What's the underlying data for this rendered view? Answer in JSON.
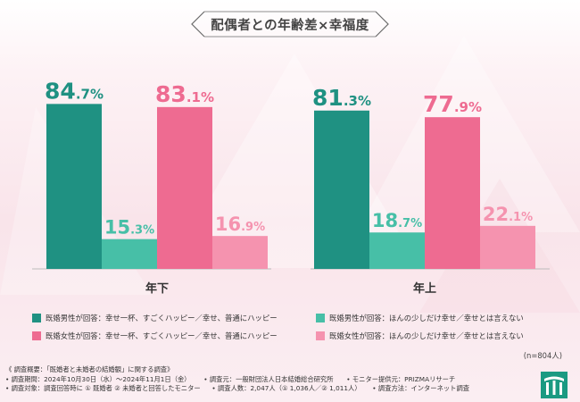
{
  "title": "配偶者との年齢差×幸福度",
  "colors": {
    "married_male_happy": "#1f9182",
    "married_male_not": "#47bfa7",
    "married_female_happy": "#ee6b91",
    "married_female_not": "#f593af",
    "logo": "#1a9a82"
  },
  "chart_data": {
    "type": "bar",
    "title": "配偶者との年齢差×幸福度",
    "categories": [
      "年下",
      "年上"
    ],
    "ylim": [
      0,
      100
    ],
    "value_format": "percent",
    "series": [
      {
        "name": "既婚男性が回答：幸せ一杯、すごくハッピー／幸せ、普通にハッピー",
        "values": [
          84.7,
          81.3
        ]
      },
      {
        "name": "既婚男性が回答：ほんの少しだけ幸せ／幸せとは言えない",
        "values": [
          15.3,
          18.7
        ]
      },
      {
        "name": "既婚女性が回答：幸せ一杯、すごくハッピー／幸せ、普通にハッピー",
        "values": [
          83.1,
          77.9
        ]
      },
      {
        "name": "既婚女性が回答：ほんの少しだけ幸せ／幸せとは言えない",
        "values": [
          16.9,
          22.1
        ]
      }
    ],
    "legend_position": "bottom"
  },
  "legend": [
    "既婚男性が回答：幸せ一杯、すごくハッピー／幸せ、普通にハッピー",
    "既婚男性が回答：ほんの少しだけ幸せ／幸せとは言えない",
    "既婚女性が回答：幸せ一杯、すごくハッピー／幸せ、普通にハッピー",
    "既婚女性が回答：ほんの少しだけ幸せ／幸せとは言えない"
  ],
  "sample_size": "(n=804人)",
  "notes": {
    "overview": "《 調査概要：「既婚者と未婚者の結婚観」に関する調査》",
    "period": "• 調査期間：2024年10月30日（水）～2024年11月1日（金）",
    "organizer": "• 調査元：一般財団法人日本結婚総合研究所",
    "provider": "• モニター提供元：PRIZMAリサーチ",
    "target": "• 調査対象：調査回答時に ① 既婚者 ② 未婚者と回答したモニター",
    "count": "• 調査人数：2,047人（① 1,036人／② 1,011人）",
    "method": "• 調査方法：インターネット調査"
  },
  "icons": {
    "logo": "foundation-logo-icon"
  }
}
